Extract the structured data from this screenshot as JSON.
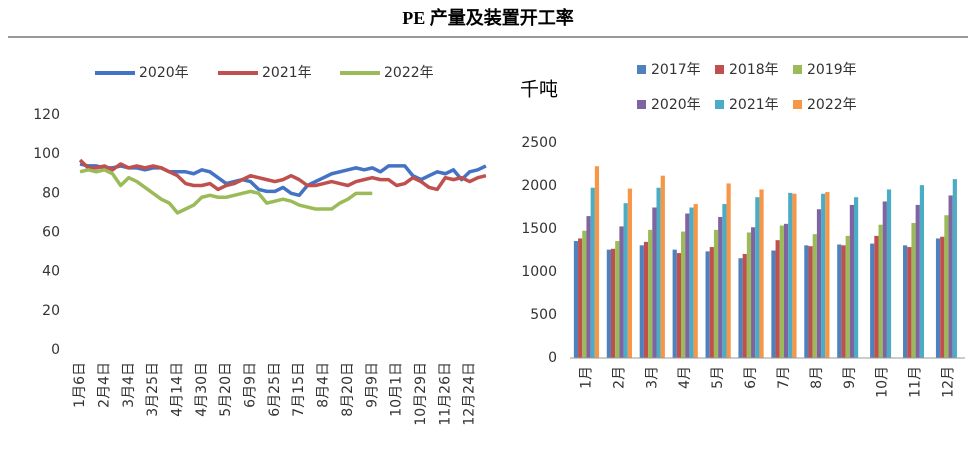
{
  "title": "PE 产量及装置开工率",
  "chart_data": [
    {
      "type": "line",
      "categories": [
        "1月6日",
        null,
        null,
        "2月4日",
        null,
        null,
        "3月4日",
        null,
        null,
        "3月25日",
        null,
        null,
        "4月14日",
        null,
        null,
        "4月30日",
        null,
        null,
        "5月20日",
        null,
        null,
        "6月9日",
        null,
        null,
        "6月25日",
        null,
        null,
        "7月15日",
        null,
        null,
        "8月4日",
        null,
        null,
        "8月20日",
        null,
        null,
        "9月9日",
        null,
        null,
        "10月1日",
        null,
        null,
        "10月29日",
        null,
        null,
        "11月26日",
        null,
        null,
        "12月24日",
        null,
        null
      ],
      "series": [
        {
          "name": "2020年",
          "color": "#4472c4",
          "values": [
            95,
            94,
            94,
            93,
            93,
            94,
            93,
            93,
            92,
            93,
            93,
            91,
            91,
            91,
            90,
            92,
            91,
            88,
            85,
            86,
            87,
            86,
            82,
            81,
            81,
            83,
            80,
            79,
            84,
            86,
            88,
            90,
            91,
            92,
            93,
            92,
            93,
            91,
            94,
            94,
            94,
            89,
            87,
            89,
            91,
            90,
            92,
            87,
            91,
            92,
            94
          ]
        },
        {
          "name": "2021年",
          "color": "#c0504d",
          "values": [
            97,
            93,
            93,
            94,
            92,
            95,
            93,
            94,
            93,
            94,
            93,
            91,
            89,
            85,
            84,
            84,
            85,
            82,
            84,
            85,
            87,
            89,
            88,
            87,
            86,
            87,
            89,
            87,
            84,
            84,
            85,
            86,
            85,
            84,
            86,
            87,
            88,
            87,
            87,
            84,
            85,
            88,
            86,
            83,
            82,
            88,
            87,
            88,
            86,
            88,
            89
          ]
        },
        {
          "name": "2022年",
          "color": "#9bbb59",
          "values": [
            91,
            92,
            91,
            92,
            90,
            84,
            88,
            86,
            83,
            80,
            77,
            75,
            70,
            72,
            74,
            78,
            79,
            78,
            78,
            79,
            80,
            81,
            80,
            75,
            76,
            77,
            76,
            74,
            73,
            72,
            72,
            72,
            75,
            77,
            80,
            80,
            80,
            null,
            null,
            null,
            null,
            null,
            null,
            null,
            null,
            null,
            null,
            null,
            null,
            null,
            null
          ]
        }
      ],
      "ylim": [
        0,
        120
      ],
      "yticks": [
        0,
        20,
        40,
        60,
        80,
        100,
        120
      ]
    },
    {
      "type": "bar",
      "y_label": "千吨",
      "categories": [
        "1月",
        "2月",
        "3月",
        "4月",
        "5月",
        "6月",
        "7月",
        "8月",
        "9月",
        "10月",
        "11月",
        "12月"
      ],
      "series": [
        {
          "name": "2017年",
          "color": "#4f81bd",
          "values": [
            1360,
            1260,
            1310,
            1260,
            1240,
            1160,
            1250,
            1310,
            1320,
            1330,
            1310,
            1390
          ]
        },
        {
          "name": "2018年",
          "color": "#c0504d",
          "values": [
            1390,
            1270,
            1350,
            1220,
            1290,
            1210,
            1370,
            1300,
            1310,
            1420,
            1290,
            1410
          ]
        },
        {
          "name": "2019年",
          "color": "#9bbb59",
          "values": [
            1480,
            1360,
            1490,
            1470,
            1490,
            1460,
            1540,
            1440,
            1420,
            1550,
            1570,
            1660
          ]
        },
        {
          "name": "2020年",
          "color": "#8064a2",
          "values": [
            1650,
            1530,
            1750,
            1680,
            1640,
            1520,
            1560,
            1730,
            1780,
            1820,
            1780,
            1890
          ]
        },
        {
          "name": "2021年",
          "color": "#4bacc6",
          "values": [
            1980,
            1800,
            1980,
            1750,
            1790,
            1870,
            1920,
            1910,
            1870,
            1960,
            2010,
            2080
          ]
        },
        {
          "name": "2022年",
          "color": "#f79646",
          "values": [
            2230,
            1970,
            2120,
            1790,
            2030,
            1960,
            1910,
            1930,
            null,
            null,
            null,
            null
          ]
        }
      ],
      "ylim": [
        0,
        2500
      ],
      "yticks": [
        0,
        500,
        1000,
        1500,
        2000,
        2500
      ]
    }
  ]
}
